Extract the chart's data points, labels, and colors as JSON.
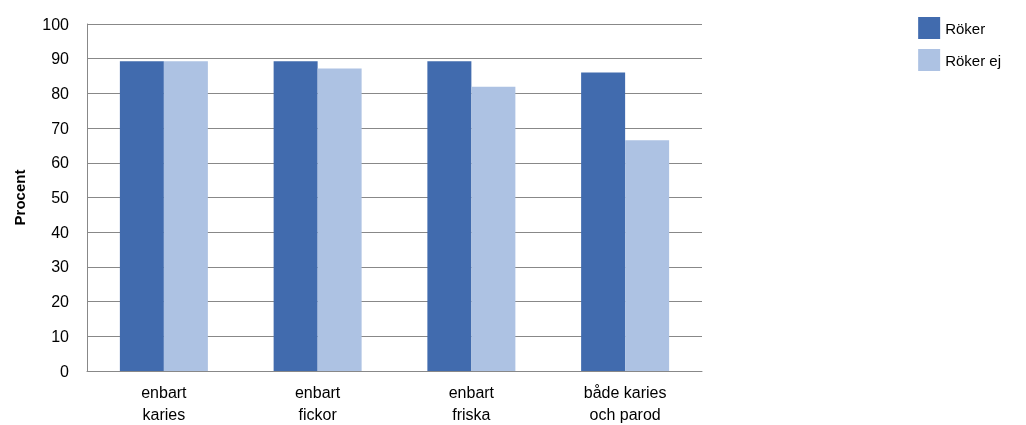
{
  "chart_data": {
    "type": "bar",
    "ylabel": "Procent",
    "categories": [
      "enbart\nkaries",
      "enbart\nfickor",
      "enbart\nfriska",
      "både karies\noch parod"
    ],
    "series": [
      {
        "name": "Röker",
        "color": "#416bae",
        "values": [
          89.3,
          89.3,
          89.3,
          86
        ]
      },
      {
        "name": "Röker ej",
        "color": "#adc2e3",
        "values": [
          89.3,
          87.2,
          81.9,
          66.5
        ]
      }
    ],
    "ylim": [
      0,
      100
    ],
    "yticks": [
      0,
      10,
      20,
      30,
      40,
      50,
      60,
      70,
      80,
      90,
      100
    ],
    "grid": "y",
    "legend": "top right"
  }
}
